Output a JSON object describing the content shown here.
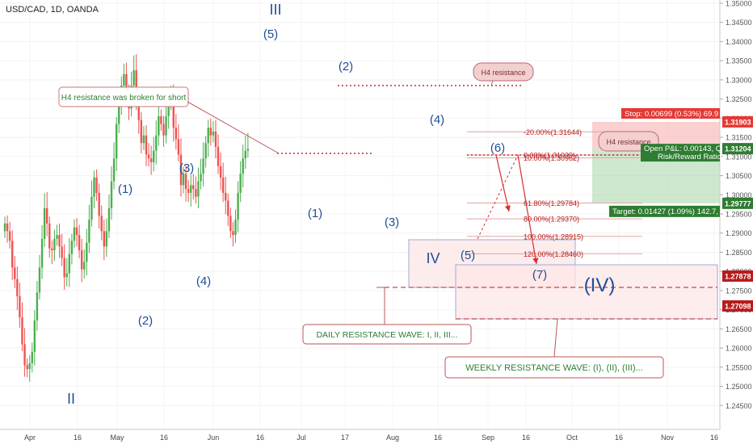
{
  "header": {
    "symbol": "USD/CAD, 1D, OANDA"
  },
  "colors": {
    "up": "#4caf50",
    "down": "#ef5350",
    "wave_label": "#1f4e96",
    "price_axis_text": "#555555",
    "fib_line": "#e5a3a3",
    "fib_text": "#b71c1c"
  },
  "chart_data": {
    "type": "candlestick",
    "ylim": [
      1.24,
      1.35
    ],
    "y_ticks": [
      "1.24500",
      "1.25000",
      "1.25500",
      "1.26000",
      "1.26500",
      "1.27000",
      "1.27500",
      "1.28000",
      "1.28500",
      "1.29000",
      "1.29500",
      "1.30000",
      "1.30500",
      "1.31000",
      "1.31500",
      "1.32000",
      "1.32500",
      "1.33000",
      "1.33500",
      "1.34000",
      "1.34500",
      "1.35000"
    ],
    "x_ticks": [
      "Apr",
      "16",
      "May",
      "16",
      "Jun",
      "16",
      "Jul",
      "17",
      "Aug",
      "16",
      "Sep",
      "16",
      "Oct",
      "16",
      "Nov",
      "16"
    ],
    "close_path": [
      1.2925,
      1.2905,
      1.288,
      1.281,
      1.278,
      1.2735,
      1.268,
      1.261,
      1.2555,
      1.2545,
      1.256,
      1.259,
      1.2672,
      1.2745,
      1.281,
      1.2885,
      1.2965,
      1.2925,
      1.286,
      1.2855,
      1.2885,
      1.2895,
      1.2865,
      1.2835,
      1.2785,
      1.2795,
      1.2845,
      1.288,
      1.2915,
      1.2895,
      1.2855,
      1.2805,
      1.2825,
      1.2875,
      1.2935,
      1.2995,
      1.3045,
      1.3005,
      1.2945,
      1.2905,
      1.2865,
      1.2905,
      1.2965,
      1.3035,
      1.3095,
      1.3185,
      1.3245,
      1.3285,
      1.3315,
      1.3255,
      1.3225,
      1.3285,
      1.3325,
      1.3245,
      1.3195,
      1.3135,
      1.3155,
      1.3105,
      1.3095,
      1.3085,
      1.3115,
      1.3155,
      1.3205,
      1.3185,
      1.3155,
      1.3205,
      1.3245,
      1.3255,
      1.3175,
      1.3145,
      1.3105,
      1.3025,
      1.3055,
      1.3015,
      1.3005,
      1.3025,
      1.3015,
      1.2995,
      1.3035,
      1.3055,
      1.3095,
      1.3135,
      1.3175,
      1.3155,
      1.3165,
      1.3125,
      1.3075,
      1.3045,
      1.3005,
      1.2985,
      1.2945,
      1.2905,
      1.2895,
      1.2935,
      1.3005,
      1.3055,
      1.3095,
      1.3115,
      1.312
    ],
    "wave_labels": [
      {
        "text": "III",
        "size": "large"
      },
      {
        "text": "(5)"
      },
      {
        "text": "(2)"
      },
      {
        "text": "(4)"
      },
      {
        "text": "(6)"
      },
      {
        "text": "(1)"
      },
      {
        "text": "(3)"
      },
      {
        "text": "(4)"
      },
      {
        "text": "(2)"
      },
      {
        "text": "II",
        "size": "large"
      },
      {
        "text": "(1)"
      },
      {
        "text": "(3)"
      },
      {
        "text": "(5)"
      },
      {
        "text": "IV",
        "size": "large"
      },
      {
        "text": "(7)"
      },
      {
        "text": "(IV)",
        "size": "xlarge"
      }
    ],
    "fib_levels": [
      {
        "label": "-20.00%(1.31644)",
        "value": 1.31644
      },
      {
        "label": "0.00%(1.31039)",
        "value": 1.31039
      },
      {
        "label": "10.00%(1.30962)",
        "value": 1.30962
      },
      {
        "label": "61.80%(1.29784)",
        "value": 1.29784
      },
      {
        "label": "80.00%(1.29370)",
        "value": 1.2937
      },
      {
        "label": "100.00%(1.28915)",
        "value": 1.28915
      },
      {
        "label": "120.00%(1.28460)",
        "value": 1.2846
      }
    ],
    "price_tags": [
      {
        "label": "1.31903",
        "value": 1.31903,
        "color": "#e53935"
      },
      {
        "label": "1.31204",
        "value": 1.31204,
        "color": "#2e7d32"
      },
      {
        "label": "1.29777",
        "value": 1.29777,
        "color": "#2e7d32"
      },
      {
        "label": "1.27878",
        "value": 1.27878,
        "color": "#b71c1c"
      },
      {
        "label": "1.27098",
        "value": 1.27098,
        "color": "#b71c1c"
      }
    ],
    "position": {
      "stop_label": "Stop: 0.00699 (0.53%) 69.9",
      "pnl_label": "Open P&L: 0.00143, Qt",
      "rr_label": "Risk/Reward Ratio:",
      "target_label": "Target: 0.01427 (1.09%) 142.7,"
    },
    "annotations": {
      "h4_broken": "H4 resistance was broken for short",
      "h4_resistance": "H4 resistance",
      "daily_wave": "DAILY RESISTANCE WAVE: I, II, III...",
      "weekly_wave": "WEEKLY RESISTANCE WAVE: (I), (II), (III)..."
    }
  }
}
